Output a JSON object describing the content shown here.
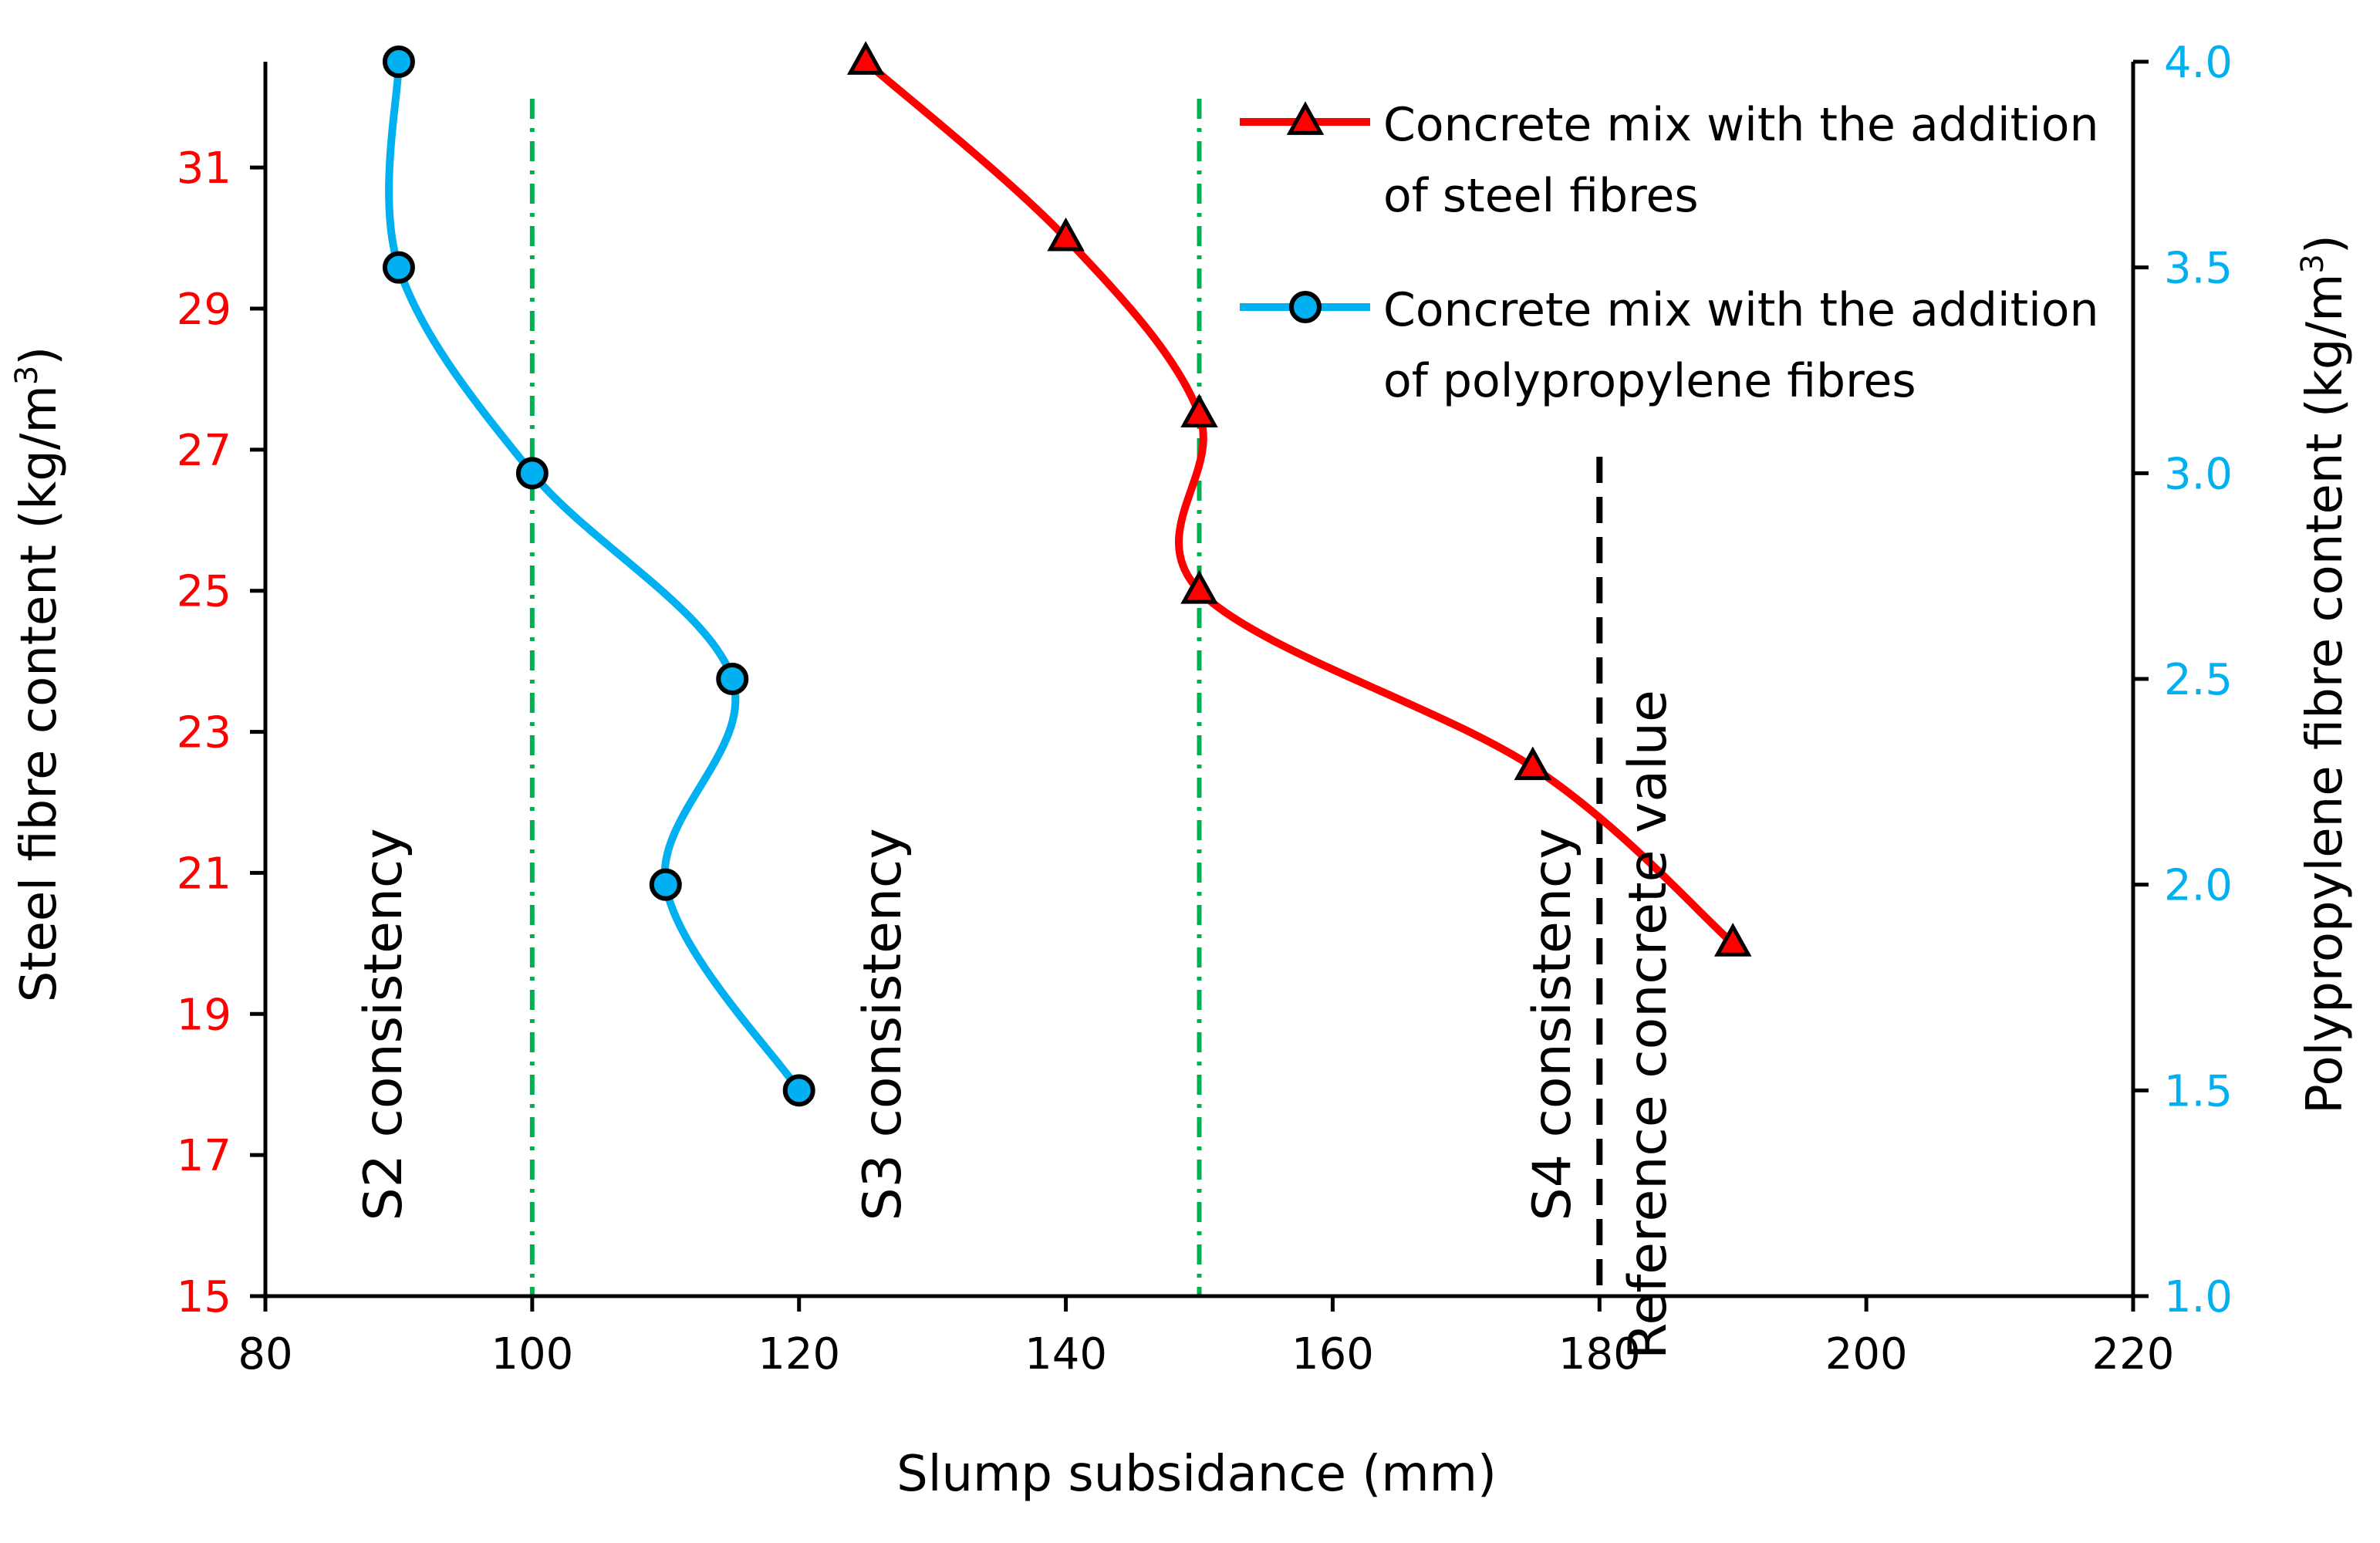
{
  "chart_data": {
    "type": "line",
    "xlabel": "Slump subsidance (mm)",
    "xlim": [
      80,
      220
    ],
    "xticks": [
      80,
      100,
      120,
      140,
      160,
      180,
      200,
      220
    ],
    "ylabel_left": "Steel fibre content (kg/m³)",
    "ylabel_left_parts": [
      "Steel fibre content (kg/m",
      "3",
      ")"
    ],
    "ylim_left": [
      15,
      32.5
    ],
    "yticks_left": [
      15,
      17,
      19,
      21,
      23,
      25,
      27,
      29,
      31
    ],
    "ylabel_right": "Polypropylene fibre content (kg/m³)",
    "ylabel_right_parts": [
      "Polypropylene fibre content (kg/m",
      "3",
      ")"
    ],
    "ylim_right": [
      1.0,
      4.0
    ],
    "yticks_right": [
      "1.0",
      "1.5",
      "2.0",
      "2.5",
      "3.0",
      "3.5",
      "4.0"
    ],
    "series": [
      {
        "name": "Concrete mix with the addition of steel fibres",
        "legend_lines": [
          "Concrete mix with the addition",
          "of steel fibres"
        ],
        "axis": "left",
        "color": "#ff0000",
        "marker": "triangle",
        "points": [
          {
            "x": 125,
            "y": 32.5
          },
          {
            "x": 140,
            "y": 30
          },
          {
            "x": 150,
            "y": 27.5
          },
          {
            "x": 150,
            "y": 25
          },
          {
            "x": 175,
            "y": 22.5
          },
          {
            "x": 190,
            "y": 20
          }
        ]
      },
      {
        "name": "Concrete mix with the addition of polypropylene fibres",
        "legend_lines": [
          "Concrete mix with the addition",
          "of polypropylene fibres"
        ],
        "axis": "right",
        "color": "#00b0f0",
        "marker": "circle",
        "points": [
          {
            "x": 90,
            "y": 4.0
          },
          {
            "x": 90,
            "y": 3.5
          },
          {
            "x": 100,
            "y": 3.0
          },
          {
            "x": 115,
            "y": 2.5
          },
          {
            "x": 110,
            "y": 2.0
          },
          {
            "x": 120,
            "y": 1.5
          }
        ]
      }
    ],
    "reference_lines": [
      {
        "x": 100,
        "style": "dash-dot",
        "color": "#00b050",
        "label": "S2 consistency"
      },
      {
        "x": 150,
        "style": "dash-dot",
        "color": "#00b050",
        "label": "S3 consistency"
      },
      {
        "x": 180,
        "style": "dashed",
        "color": "#000000",
        "label": "S4 consistency",
        "label2": "Reference concrete value"
      }
    ],
    "left_axis_color": "#ff0000",
    "right_axis_color": "#00b0f0",
    "legend_position": "top-right"
  }
}
